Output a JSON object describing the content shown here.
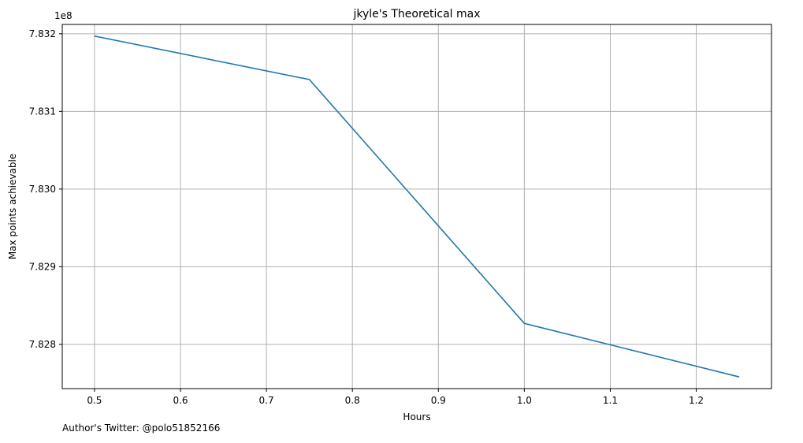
{
  "chart_data": {
    "type": "line",
    "title": "jkyle's Theoretical max",
    "xlabel": "Hours",
    "ylabel": "Max points achievable",
    "y_offset_label": "1e8",
    "x": [
      0.5,
      0.75,
      1.0,
      1.25
    ],
    "series": [
      {
        "name": "Max points achievable",
        "values": [
          783197000,
          783141000,
          782827000,
          782758000
        ],
        "color": "#1f77b4"
      }
    ],
    "xlim": [
      0.4625,
      1.2875
    ],
    "ylim": [
      782743000,
      783212000
    ],
    "xticks": [
      0.5,
      0.6,
      0.7,
      0.8,
      0.9,
      1.0,
      1.1,
      1.2
    ],
    "xtick_labels": [
      "0.5",
      "0.6",
      "0.7",
      "0.8",
      "0.9",
      "1.0",
      "1.1",
      "1.2"
    ],
    "yticks": [
      782800000,
      782900000,
      783000000,
      783100000,
      783200000
    ],
    "ytick_labels": [
      "7.828",
      "7.829",
      "7.830",
      "7.831",
      "7.832"
    ],
    "grid": true
  },
  "footer": {
    "text": "Author's Twitter: @polo51852166"
  },
  "colors": {
    "line": "#1f77b4",
    "grid": "#b0b0b0",
    "axis": "#000000"
  }
}
